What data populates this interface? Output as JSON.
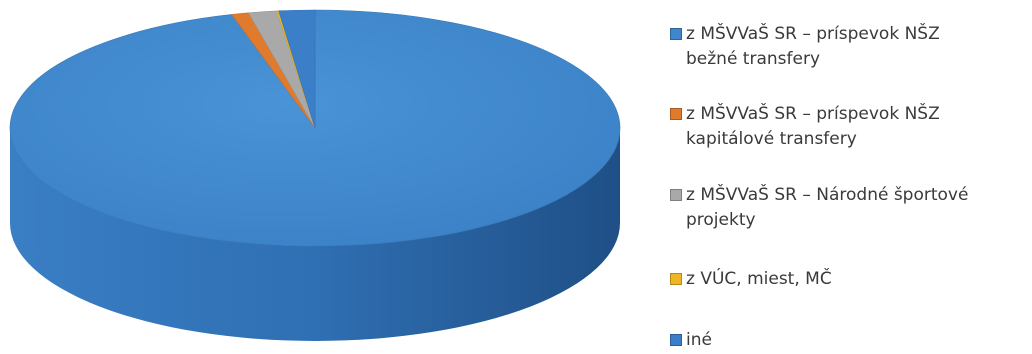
{
  "chart_data": {
    "type": "pie",
    "style": "3d",
    "title": "",
    "series": [
      {
        "slices": [
          {
            "label": "z MŠVVaŠ SR – príspevok NŠZ\nbežné transfery",
            "value": 95.6,
            "color": "#3f86cc"
          },
          {
            "label": "z MŠVVaŠ SR – príspevok NŠZ\nkapitálové transfery",
            "value": 0.9,
            "color": "#e07a2c"
          },
          {
            "label": "z MŠVVaŠ SR – Národné športové\nprojekty",
            "value": 1.5,
            "color": "#a9a9a9"
          },
          {
            "label": "z VÚC, miest, MČ",
            "value": 0.1,
            "color": "#f0b522"
          },
          {
            "label": "iné",
            "value": 1.9,
            "color": "#3a7fc8"
          }
        ]
      }
    ],
    "legend_position": "right"
  },
  "colors": {
    "background": "#ffffff",
    "legend_text": "#3a3a3a"
  }
}
